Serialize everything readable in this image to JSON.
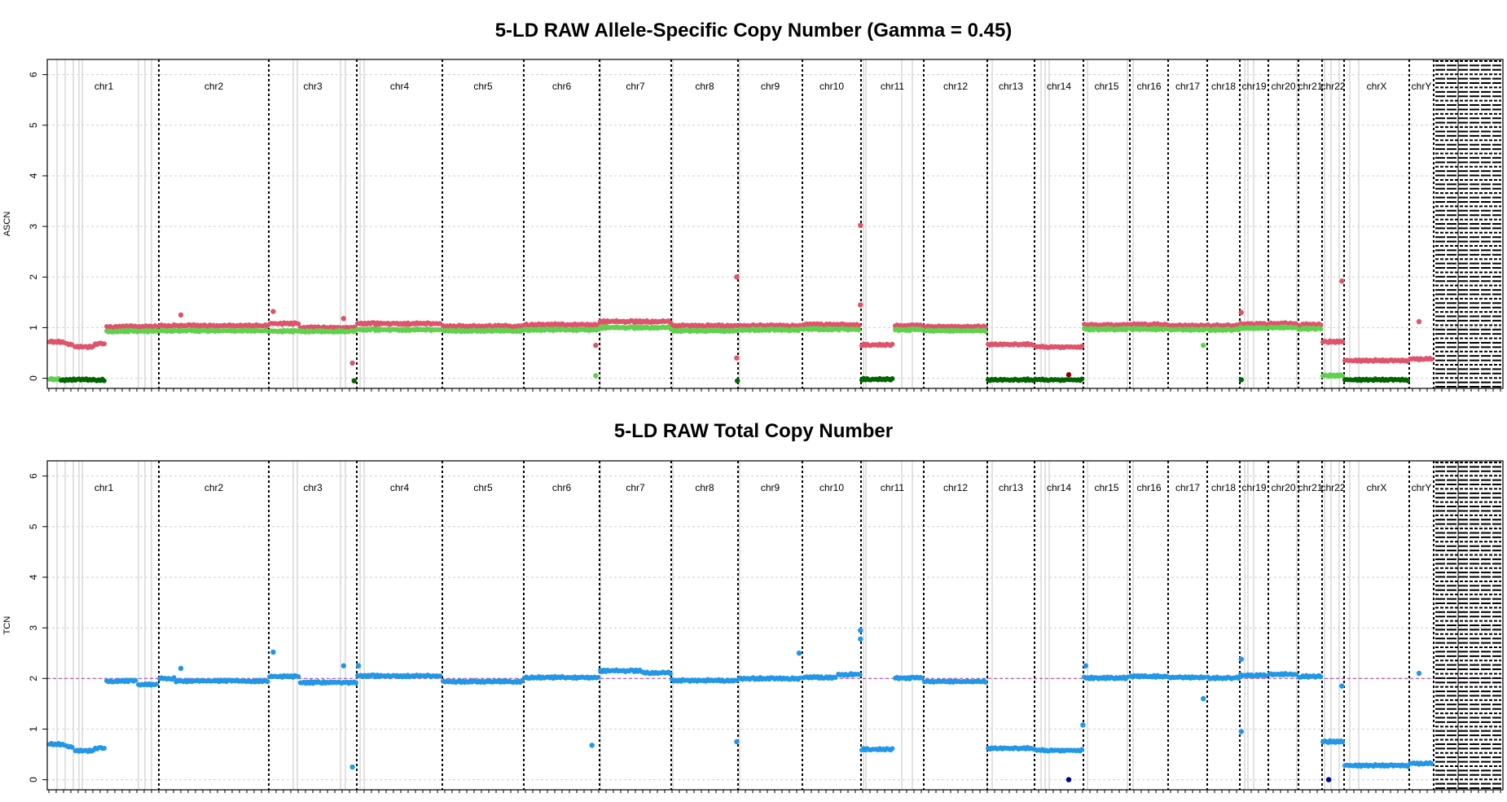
{
  "chart_data": [
    {
      "type": "scatter",
      "title": "5-LD RAW Allele-Specific Copy Number (Gamma = 0.45)",
      "ylabel": "ASCN",
      "ylim": [
        -0.2,
        6.3
      ],
      "yticks": [
        0,
        1,
        2,
        3,
        4,
        5,
        6
      ],
      "grid": true,
      "chromosomes": [
        "chr1",
        "chr2",
        "chr3",
        "chr4",
        "chr5",
        "chr6",
        "chr7",
        "chr8",
        "chr9",
        "chr10",
        "chr11",
        "chr12",
        "chr13",
        "chr14",
        "chr15",
        "chr16",
        "chr17",
        "chr18",
        "chr19",
        "chr20",
        "chr21",
        "chr22",
        "chrX",
        "chrY"
      ],
      "series": [
        {
          "color": "#DF536B",
          "segments": [
            {
              "chr": "chr1",
              "from": 0,
              "to": 0.3,
              "value": 0.72
            },
            {
              "chr": "chr1",
              "from": 0.3,
              "to": 0.45,
              "value": 0.67
            },
            {
              "chr": "chr1",
              "from": 0.45,
              "to": 0.8,
              "value": 0.62
            },
            {
              "chr": "chr1",
              "from": 0.8,
              "to": 1,
              "value": 0.68
            },
            {
              "chr": "chr1b",
              "from": 0,
              "to": 1,
              "value": 1.02
            },
            {
              "chr": "chr2",
              "from": 0,
              "to": 1,
              "value": 1.04
            },
            {
              "chr": "chr3",
              "from": 0,
              "to": 0.35,
              "value": 1.08
            },
            {
              "chr": "chr3",
              "from": 0.35,
              "to": 1,
              "value": 1.0
            },
            {
              "chr": "chr4",
              "from": 0,
              "to": 1,
              "value": 1.08
            },
            {
              "chr": "chr5",
              "from": 0,
              "to": 1,
              "value": 1.03
            },
            {
              "chr": "chr6",
              "from": 0,
              "to": 1,
              "value": 1.06
            },
            {
              "chr": "chr7",
              "from": 0,
              "to": 1,
              "value": 1.12
            },
            {
              "chr": "chr8",
              "from": 0,
              "to": 1,
              "value": 1.04
            },
            {
              "chr": "chr9",
              "from": 0,
              "to": 1,
              "value": 1.04
            },
            {
              "chr": "chr10",
              "from": 0,
              "to": 1,
              "value": 1.06
            },
            {
              "chr": "chr11",
              "from": 0,
              "to": 1,
              "value": 0.66
            },
            {
              "chr": "chr11b",
              "from": 0,
              "to": 1,
              "value": 1.04
            },
            {
              "chr": "chr12",
              "from": 0,
              "to": 1,
              "value": 1.02
            },
            {
              "chr": "chr13",
              "from": 0,
              "to": 1,
              "value": 0.67
            },
            {
              "chr": "chr14",
              "from": 0,
              "to": 1,
              "value": 0.62
            },
            {
              "chr": "chr15",
              "from": 0,
              "to": 1,
              "value": 1.05
            },
            {
              "chr": "chr16",
              "from": 0,
              "to": 1,
              "value": 1.06
            },
            {
              "chr": "chr17",
              "from": 0,
              "to": 1,
              "value": 1.04
            },
            {
              "chr": "chr18",
              "from": 0,
              "to": 1,
              "value": 1.04
            },
            {
              "chr": "chr19",
              "from": 0,
              "to": 1,
              "value": 1.07
            },
            {
              "chr": "chr20",
              "from": 0,
              "to": 1,
              "value": 1.08
            },
            {
              "chr": "chr21",
              "from": 0,
              "to": 1,
              "value": 1.06
            },
            {
              "chr": "chr22",
              "from": 0,
              "to": 1,
              "value": 0.72
            },
            {
              "chr": "chrX",
              "from": 0,
              "to": 1,
              "value": 0.35
            },
            {
              "chr": "chrY",
              "from": 0,
              "to": 1,
              "value": 0.38
            }
          ]
        },
        {
          "color": "#61D04F",
          "segments": [
            {
              "chr": "chr1",
              "from": 0,
              "to": 0.2,
              "value": -0.02
            },
            {
              "chr": "chr1b",
              "from": 0,
              "to": 1,
              "value": 0.93
            },
            {
              "chr": "chr2",
              "from": 0,
              "to": 1,
              "value": 0.94
            },
            {
              "chr": "chr3",
              "from": 0,
              "to": 1,
              "value": 0.93
            },
            {
              "chr": "chr4",
              "from": 0,
              "to": 1,
              "value": 0.96
            },
            {
              "chr": "chr5",
              "from": 0,
              "to": 1,
              "value": 0.94
            },
            {
              "chr": "chr6",
              "from": 0,
              "to": 1,
              "value": 0.96
            },
            {
              "chr": "chr7",
              "from": 0,
              "to": 1,
              "value": 1.0
            },
            {
              "chr": "chr8",
              "from": 0,
              "to": 1,
              "value": 0.94
            },
            {
              "chr": "chr9",
              "from": 0,
              "to": 1,
              "value": 0.96
            },
            {
              "chr": "chr10",
              "from": 0,
              "to": 1,
              "value": 0.97
            },
            {
              "chr": "chr11b",
              "from": 0,
              "to": 1,
              "value": 0.96
            },
            {
              "chr": "chr12",
              "from": 0,
              "to": 1,
              "value": 0.94
            },
            {
              "chr": "chr15",
              "from": 0,
              "to": 1,
              "value": 0.97
            },
            {
              "chr": "chr16",
              "from": 0,
              "to": 1,
              "value": 0.97
            },
            {
              "chr": "chr17",
              "from": 0,
              "to": 1,
              "value": 0.96
            },
            {
              "chr": "chr18",
              "from": 0,
              "to": 1,
              "value": 0.96
            },
            {
              "chr": "chr19",
              "from": 0,
              "to": 1,
              "value": 0.99
            },
            {
              "chr": "chr20",
              "from": 0,
              "to": 1,
              "value": 1.0
            },
            {
              "chr": "chr21",
              "from": 0,
              "to": 1,
              "value": 0.98
            },
            {
              "chr": "chr22",
              "from": 0,
              "to": 1,
              "value": 0.05
            }
          ]
        },
        {
          "color": "#006400",
          "segments": [
            {
              "chr": "chr1",
              "from": 0.2,
              "to": 1,
              "value": -0.03
            },
            {
              "chr": "chr11",
              "from": 0,
              "to": 1,
              "value": -0.02
            },
            {
              "chr": "chr13",
              "from": 0,
              "to": 1,
              "value": -0.03
            },
            {
              "chr": "chr14",
              "from": 0,
              "to": 1,
              "value": -0.03
            },
            {
              "chr": "chrX",
              "from": 0,
              "to": 1,
              "value": -0.03
            }
          ]
        }
      ],
      "outliers": [
        {
          "chr": "chr2",
          "pos": 0.2,
          "value": 1.25,
          "color": "#DF536B"
        },
        {
          "chr": "chr3",
          "pos": 0.05,
          "value": 1.32,
          "color": "#DF536B"
        },
        {
          "chr": "chr3",
          "pos": 0.85,
          "value": 1.18,
          "color": "#DF536B"
        },
        {
          "chr": "chr3",
          "pos": 0.95,
          "value": 0.3,
          "color": "#DF536B"
        },
        {
          "chr": "chr3",
          "pos": 0.97,
          "value": -0.05,
          "color": "#006400"
        },
        {
          "chr": "chr8",
          "pos": 0.98,
          "value": 2.0,
          "color": "#DF536B"
        },
        {
          "chr": "chr8",
          "pos": 0.98,
          "value": 0.4,
          "color": "#DF536B"
        },
        {
          "chr": "chr8",
          "pos": 0.99,
          "value": -0.05,
          "color": "#006400"
        },
        {
          "chr": "chr10",
          "pos": 0.99,
          "value": 3.02,
          "color": "#DF536B"
        },
        {
          "chr": "chr10",
          "pos": 0.99,
          "value": 1.45,
          "color": "#DF536B"
        },
        {
          "chr": "chr6",
          "pos": 0.95,
          "value": 0.65,
          "color": "#DF536B"
        },
        {
          "chr": "chr6",
          "pos": 0.95,
          "value": 0.05,
          "color": "#61D04F"
        },
        {
          "chr": "chr14",
          "pos": 0.7,
          "value": 0.07,
          "color": "#8B0000"
        },
        {
          "chr": "chr19",
          "pos": 0.05,
          "value": 1.3,
          "color": "#DF536B"
        },
        {
          "chr": "chr19",
          "pos": 0.05,
          "value": -0.03,
          "color": "#006400"
        },
        {
          "chr": "chr22",
          "pos": 0.9,
          "value": 1.92,
          "color": "#DF536B"
        },
        {
          "chr": "chrY",
          "pos": 0.4,
          "value": 1.12,
          "color": "#DF536B"
        },
        {
          "chr": "chr17",
          "pos": 0.9,
          "value": 0.65,
          "color": "#61D04F"
        }
      ]
    },
    {
      "type": "scatter",
      "title": "5-LD RAW Total Copy Number",
      "ylabel": "TCN",
      "ylim": [
        -0.2,
        6.3
      ],
      "yticks": [
        0,
        1,
        2,
        3,
        4,
        5,
        6
      ],
      "grid": true,
      "reference_line": {
        "value": 2,
        "color": "#B030B0"
      },
      "chromosomes": [
        "chr1",
        "chr2",
        "chr3",
        "chr4",
        "chr5",
        "chr6",
        "chr7",
        "chr8",
        "chr9",
        "chr10",
        "chr11",
        "chr12",
        "chr13",
        "chr14",
        "chr15",
        "chr16",
        "chr17",
        "chr18",
        "chr19",
        "chr20",
        "chr21",
        "chr22",
        "chrX",
        "chrY"
      ],
      "series": [
        {
          "color": "#2297E6",
          "segments": [
            {
              "chr": "chr1",
              "from": 0,
              "to": 0.3,
              "value": 0.7
            },
            {
              "chr": "chr1",
              "from": 0.3,
              "to": 0.45,
              "value": 0.65
            },
            {
              "chr": "chr1",
              "from": 0.45,
              "to": 0.8,
              "value": 0.57
            },
            {
              "chr": "chr1",
              "from": 0.8,
              "to": 1,
              "value": 0.62
            },
            {
              "chr": "chr1b",
              "from": 0,
              "to": 0.6,
              "value": 1.95
            },
            {
              "chr": "chr1b",
              "from": 0.6,
              "to": 1,
              "value": 1.88
            },
            {
              "chr": "chr2",
              "from": 0,
              "to": 0.15,
              "value": 2.0
            },
            {
              "chr": "chr2",
              "from": 0.15,
              "to": 1,
              "value": 1.95
            },
            {
              "chr": "chr3",
              "from": 0,
              "to": 0.35,
              "value": 2.04
            },
            {
              "chr": "chr3",
              "from": 0.35,
              "to": 1,
              "value": 1.92
            },
            {
              "chr": "chr4",
              "from": 0,
              "to": 1,
              "value": 2.05
            },
            {
              "chr": "chr5",
              "from": 0,
              "to": 1,
              "value": 1.94
            },
            {
              "chr": "chr6",
              "from": 0,
              "to": 1,
              "value": 2.02
            },
            {
              "chr": "chr7",
              "from": 0,
              "to": 0.6,
              "value": 2.15
            },
            {
              "chr": "chr7",
              "from": 0.6,
              "to": 1,
              "value": 2.11
            },
            {
              "chr": "chr8",
              "from": 0,
              "to": 1,
              "value": 1.96
            },
            {
              "chr": "chr9",
              "from": 0,
              "to": 1,
              "value": 2.0
            },
            {
              "chr": "chr10",
              "from": 0,
              "to": 0.6,
              "value": 2.02
            },
            {
              "chr": "chr10",
              "from": 0.6,
              "to": 1,
              "value": 2.08
            },
            {
              "chr": "chr11",
              "from": 0,
              "to": 1,
              "value": 0.6
            },
            {
              "chr": "chr11b",
              "from": 0,
              "to": 1,
              "value": 2.01
            },
            {
              "chr": "chr12",
              "from": 0,
              "to": 1,
              "value": 1.94
            },
            {
              "chr": "chr13",
              "from": 0,
              "to": 1,
              "value": 0.62
            },
            {
              "chr": "chr14",
              "from": 0,
              "to": 1,
              "value": 0.58
            },
            {
              "chr": "chr15",
              "from": 0,
              "to": 1,
              "value": 2.01
            },
            {
              "chr": "chr16",
              "from": 0,
              "to": 1,
              "value": 2.04
            },
            {
              "chr": "chr17",
              "from": 0,
              "to": 1,
              "value": 2.02
            },
            {
              "chr": "chr18",
              "from": 0,
              "to": 1,
              "value": 2.01
            },
            {
              "chr": "chr19",
              "from": 0,
              "to": 1,
              "value": 2.06
            },
            {
              "chr": "chr20",
              "from": 0,
              "to": 1,
              "value": 2.08
            },
            {
              "chr": "chr21",
              "from": 0,
              "to": 1,
              "value": 2.04
            },
            {
              "chr": "chr22",
              "from": 0,
              "to": 1,
              "value": 0.75
            },
            {
              "chr": "chrX",
              "from": 0,
              "to": 1,
              "value": 0.28
            },
            {
              "chr": "chrY",
              "from": 0,
              "to": 1,
              "value": 0.32
            }
          ]
        }
      ],
      "outliers": [
        {
          "chr": "chr2",
          "pos": 0.2,
          "value": 2.2,
          "color": "#2297E6"
        },
        {
          "chr": "chr3",
          "pos": 0.05,
          "value": 2.52,
          "color": "#2297E6"
        },
        {
          "chr": "chr3",
          "pos": 0.85,
          "value": 2.25,
          "color": "#2297E6"
        },
        {
          "chr": "chr3",
          "pos": 0.95,
          "value": 0.25,
          "color": "#2297E6"
        },
        {
          "chr": "chr4",
          "pos": 0.02,
          "value": 2.25,
          "color": "#2297E6"
        },
        {
          "chr": "chr6",
          "pos": 0.9,
          "value": 0.68,
          "color": "#2297E6"
        },
        {
          "chr": "chr8",
          "pos": 0.98,
          "value": 0.75,
          "color": "#2297E6"
        },
        {
          "chr": "chr9",
          "pos": 0.95,
          "value": 2.5,
          "color": "#2297E6"
        },
        {
          "chr": "chr10",
          "pos": 0.99,
          "value": 2.95,
          "color": "#2297E6"
        },
        {
          "chr": "chr10",
          "pos": 0.99,
          "value": 2.78,
          "color": "#2297E6"
        },
        {
          "chr": "chr14",
          "pos": 0.7,
          "value": 0.0,
          "color": "#00008B"
        },
        {
          "chr": "chr14",
          "pos": 0.99,
          "value": 1.08,
          "color": "#2297E6"
        },
        {
          "chr": "chr15",
          "pos": 0.05,
          "value": 2.25,
          "color": "#2297E6"
        },
        {
          "chr": "chr17",
          "pos": 0.9,
          "value": 1.6,
          "color": "#2297E6"
        },
        {
          "chr": "chr19",
          "pos": 0.05,
          "value": 2.38,
          "color": "#2297E6"
        },
        {
          "chr": "chr19",
          "pos": 0.05,
          "value": 0.95,
          "color": "#2297E6"
        },
        {
          "chr": "chr22",
          "pos": 0.3,
          "value": 0.0,
          "color": "#00008B"
        },
        {
          "chr": "chr22",
          "pos": 0.9,
          "value": 1.85,
          "color": "#2297E6"
        },
        {
          "chr": "chrY",
          "pos": 0.4,
          "value": 2.1,
          "color": "#2297E6"
        }
      ]
    }
  ]
}
